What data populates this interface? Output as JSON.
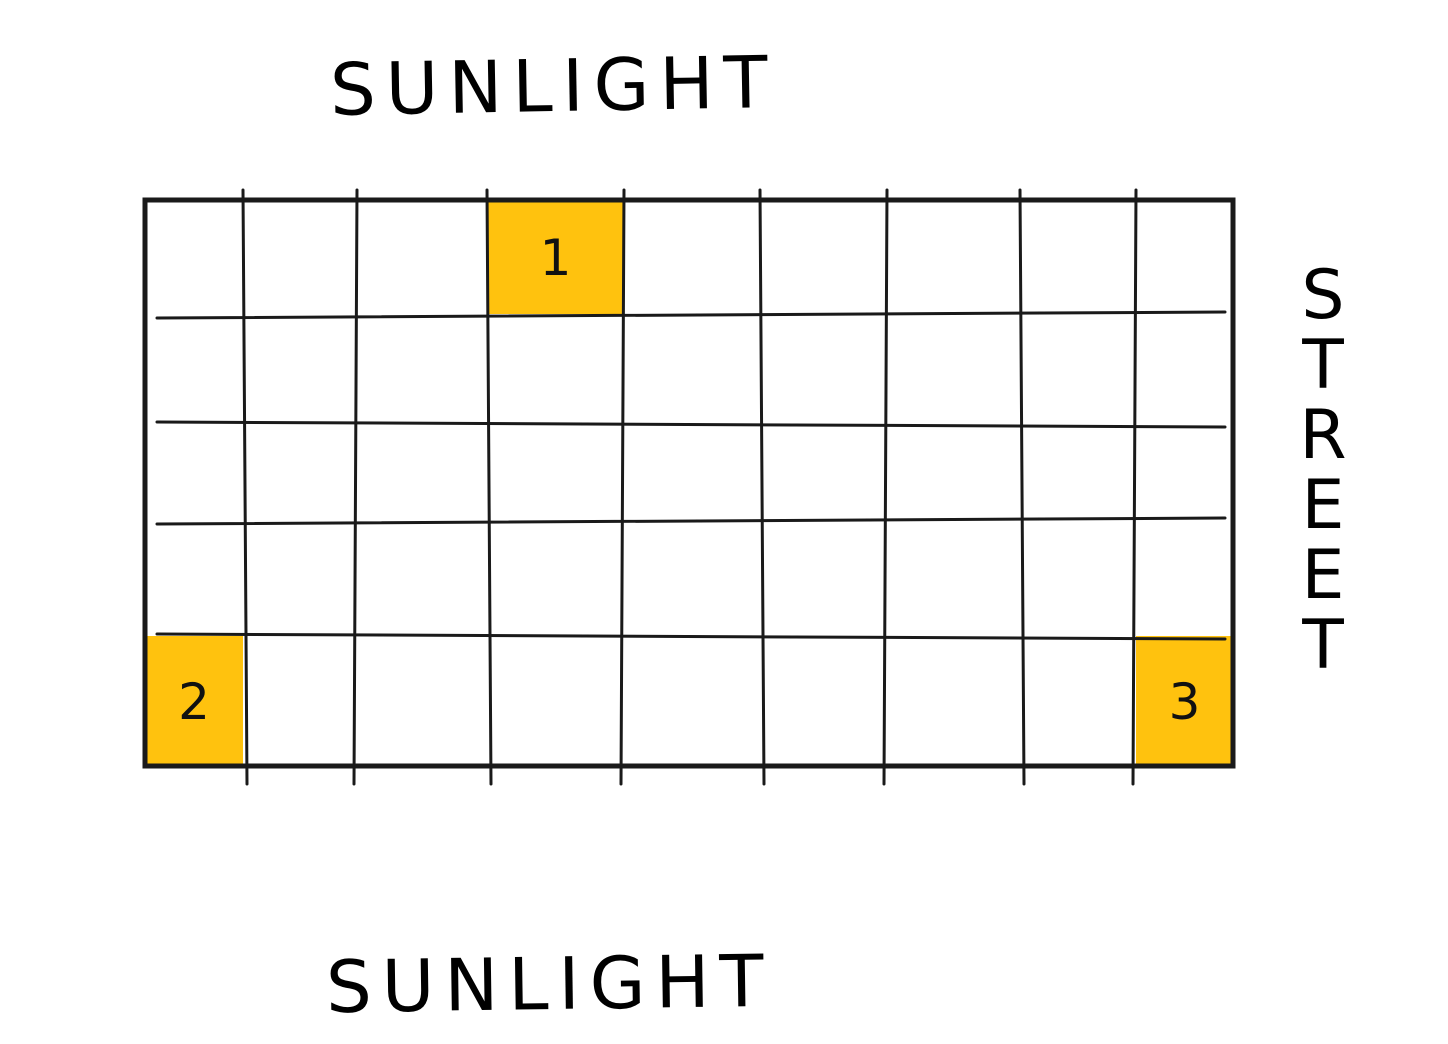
{
  "labels": {
    "top": "SUNLIGHT",
    "bottom": "SUNLIGHT",
    "side": "STREET"
  },
  "grid": {
    "rows": 5,
    "cols": 9,
    "line_color": "#1a1a1a",
    "highlight_color": "#FFC20E",
    "highlights": [
      {
        "number": "1",
        "row": 0,
        "col": 3
      },
      {
        "number": "2",
        "row": 4,
        "col": 0
      },
      {
        "number": "3",
        "row": 4,
        "col": 8
      }
    ]
  }
}
